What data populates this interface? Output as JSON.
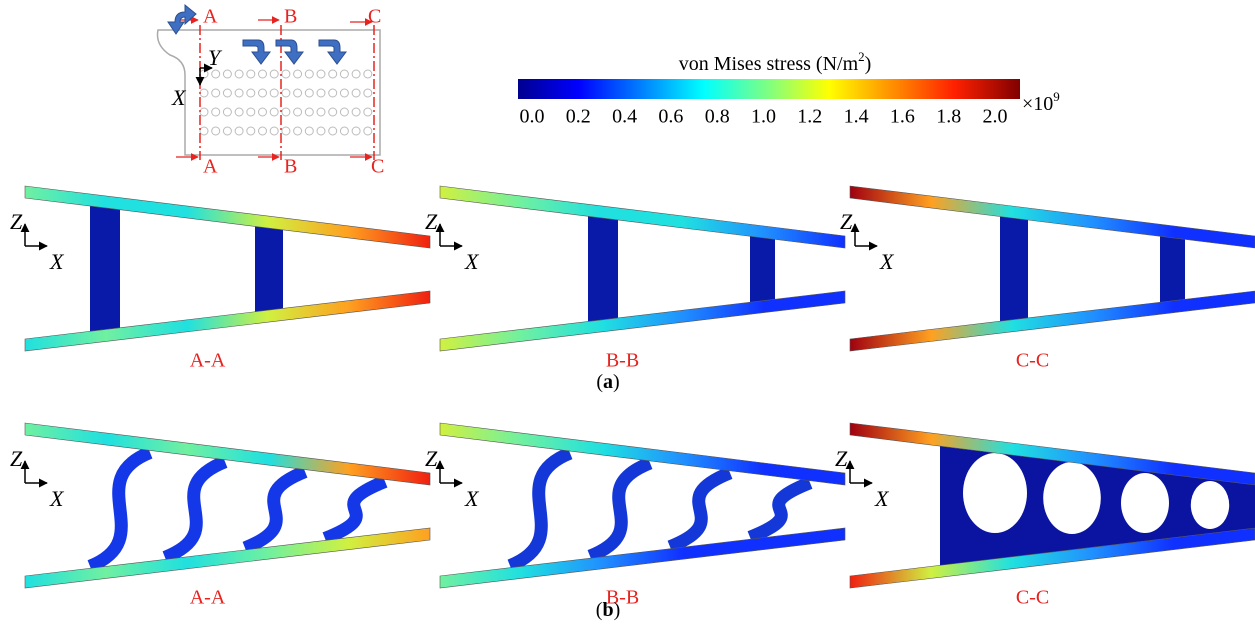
{
  "legend": {
    "title": "von Mises stress (N/m",
    "title_superscript": "2",
    "title_close": ")",
    "ticks": [
      "0.0",
      "0.2",
      "0.4",
      "0.6",
      "0.8",
      "1.0",
      "1.2",
      "1.4",
      "1.6",
      "1.8",
      "2.0"
    ],
    "multiplier": "×10",
    "multiplier_exponent": "9"
  },
  "key": {
    "sections_top": [
      "A",
      "B",
      "C"
    ],
    "sections_bottom": [
      "A",
      "B",
      "C"
    ],
    "axis_y": "Y",
    "axis_x": "X"
  },
  "panels": [
    {
      "caption": [
        "(",
        "a",
        ")"
      ],
      "views": [
        {
          "label": "A-A",
          "axis_z": "Z",
          "axis_x": "X"
        },
        {
          "label": "B-B",
          "axis_z": "Z",
          "axis_x": "X"
        },
        {
          "label": "C-C",
          "axis_z": "Z",
          "axis_x": "X"
        }
      ]
    },
    {
      "caption": [
        "(",
        "b",
        ")"
      ],
      "views": [
        {
          "label": "A-A",
          "axis_z": "Z",
          "axis_x": "X"
        },
        {
          "label": "B-B",
          "axis_z": "Z",
          "axis_x": "X"
        },
        {
          "label": "C-C",
          "axis_z": "Z",
          "axis_x": "X"
        }
      ]
    }
  ]
}
